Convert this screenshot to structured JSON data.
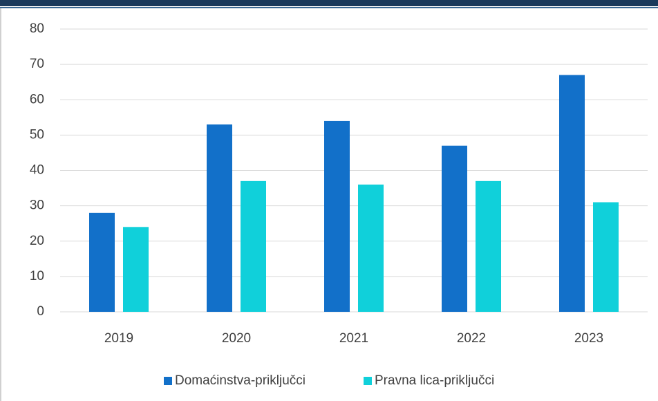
{
  "chart_data": {
    "type": "bar",
    "categories": [
      "2019",
      "2020",
      "2021",
      "2022",
      "2023"
    ],
    "series": [
      {
        "name": "Domaćinstva-priključci",
        "color": "#1270c9",
        "values": [
          28,
          53,
          54,
          47,
          67
        ]
      },
      {
        "name": "Pravna lica-priključci",
        "color": "#10d0da",
        "values": [
          24,
          37,
          36,
          37,
          31
        ]
      }
    ],
    "ylim": [
      0,
      80
    ],
    "yticks": [
      0,
      10,
      20,
      30,
      40,
      50,
      60,
      70,
      80
    ],
    "grid": true,
    "legend": "bottom"
  }
}
